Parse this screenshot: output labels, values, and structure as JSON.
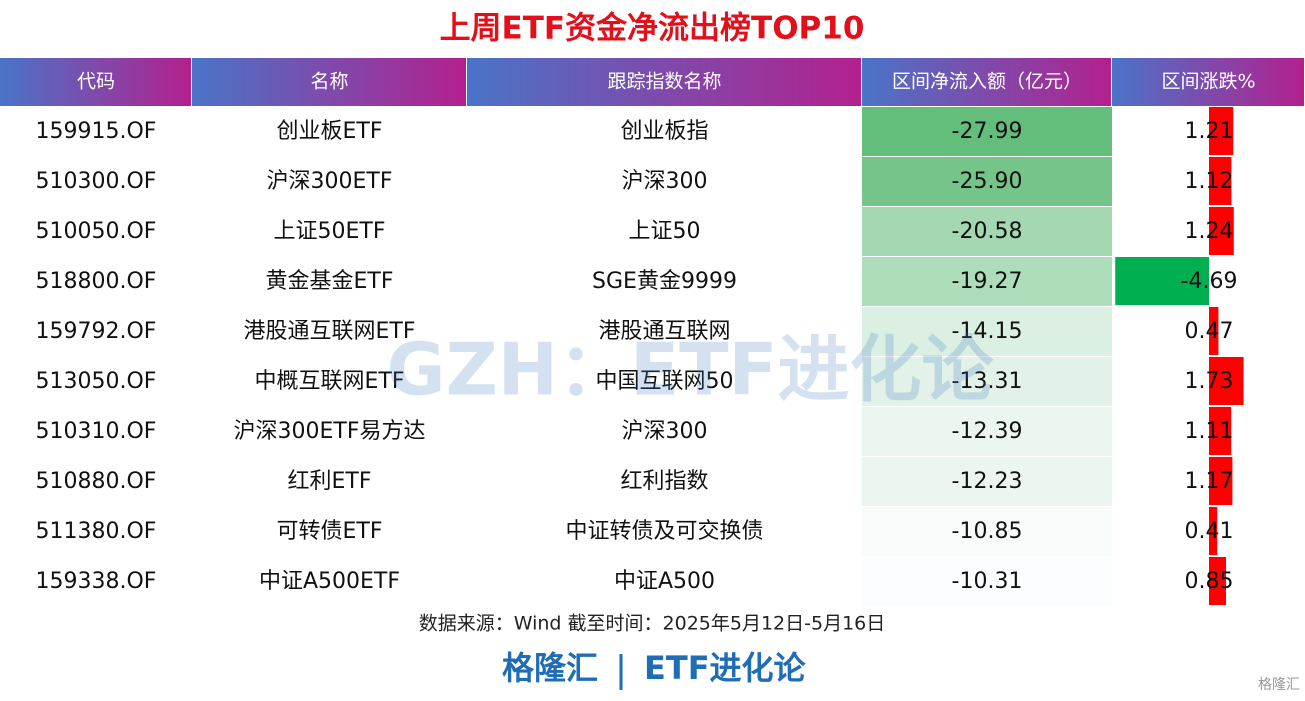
{
  "header": {
    "title": "上周ETF资金净流出榜TOP10"
  },
  "table": {
    "columns": [
      "代码",
      "名称",
      "跟踪指数名称",
      "区间净流入额（亿元）",
      "区间涨跌%"
    ],
    "rows": [
      {
        "code": "159915.OF",
        "name": "创业板ETF",
        "index": "创业板指",
        "flow": -27.99,
        "change": 1.21
      },
      {
        "code": "510300.OF",
        "name": "沪深300ETF",
        "index": "沪深300",
        "flow": {
          "value": -25.9,
          "label": "-25.90"
        },
        "change": 1.12
      },
      {
        "code": "510050.OF",
        "name": "上证50ETF",
        "index": "上证50",
        "flow": -20.58,
        "change": 1.24
      },
      {
        "code": "518800.OF",
        "name": "黄金基金ETF",
        "index": "SGE黄金9999",
        "flow": -19.27,
        "change": -4.69
      },
      {
        "code": "159792.OF",
        "name": "港股通互联网ETF",
        "index": "港股通互联网",
        "flow": -14.15,
        "change": 0.47
      },
      {
        "code": "513050.OF",
        "name": "中概互联网ETF",
        "index": "中国互联网50",
        "flow": -13.31,
        "change": 1.73
      },
      {
        "code": "510310.OF",
        "name": "沪深300ETF易方达",
        "index": "沪深300",
        "flow": -12.39,
        "change": 1.11
      },
      {
        "code": "510880.OF",
        "name": "红利ETF",
        "index": "红利指数",
        "flow": -12.23,
        "change": 1.17
      },
      {
        "code": "511380.OF",
        "name": "可转债ETF",
        "index": "中证转债及可交换债",
        "flow": -10.85,
        "change": 0.41
      },
      {
        "code": "159338.OF",
        "name": "中证A500ETF",
        "index": "中证A500",
        "flow": -10.31,
        "change": 0.85
      }
    ]
  },
  "source": "数据来源：Wind 截至时间：2025年5月12日-5月16日",
  "watermark": "GZH：ETF进化论",
  "footer": {
    "left": "格隆汇",
    "right": "ETF进化论"
  },
  "logo": "格隆汇"
}
